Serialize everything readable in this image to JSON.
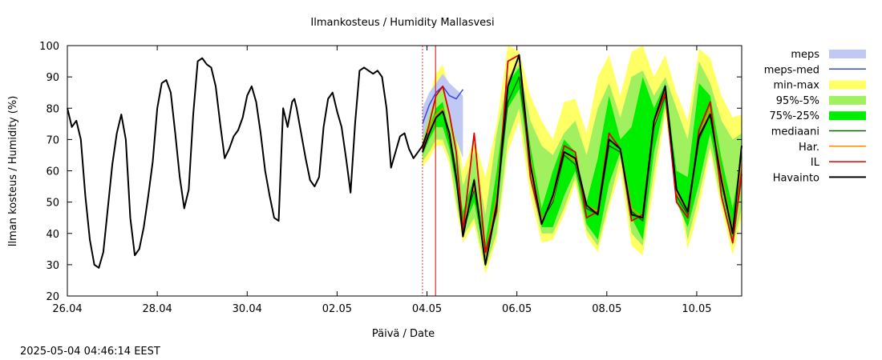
{
  "timestamp": "2025-05-04 04:46:14 EEST",
  "chart_data": {
    "type": "line",
    "title": "Ilmankosteus / Humidity  Mallasvesi",
    "xlabel": "Päivä / Date",
    "ylabel": "Ilman kosteus / Humidity (%)",
    "ylim": [
      20,
      100
    ],
    "yticks": [
      20,
      30,
      40,
      50,
      60,
      70,
      80,
      90,
      100
    ],
    "xlim_days": [
      0,
      15
    ],
    "xticks": [
      {
        "day": 0,
        "label": "26.04"
      },
      {
        "day": 2,
        "label": "28.04"
      },
      {
        "day": 4,
        "label": "30.04"
      },
      {
        "day": 6,
        "label": "02.05"
      },
      {
        "day": 8,
        "label": "04.05"
      },
      {
        "day": 10,
        "label": "06.05"
      },
      {
        "day": 12,
        "label": "08.05"
      },
      {
        "day": 14,
        "label": "10.05"
      }
    ],
    "x_unit": "days since 26.04 00:00",
    "now_marker_day": 8.19,
    "legend_position": "right",
    "legend": [
      {
        "key": "meps",
        "label": "meps",
        "type": "band",
        "color": "#c0c8f4"
      },
      {
        "key": "meps_med",
        "label": "meps-med",
        "type": "line",
        "color": "#3c48d0"
      },
      {
        "key": "minmax",
        "label": "min-max",
        "type": "band",
        "color": "#ffff66"
      },
      {
        "key": "p95",
        "label": "95%-5%",
        "type": "band",
        "color": "#a0f060"
      },
      {
        "key": "p75",
        "label": "75%-25%",
        "type": "band",
        "color": "#00ee00"
      },
      {
        "key": "median",
        "label": "mediaani",
        "type": "line",
        "color": "#006400"
      },
      {
        "key": "har",
        "label": "Har.",
        "type": "line",
        "color": "#ff8c00"
      },
      {
        "key": "il",
        "label": "IL",
        "type": "line",
        "color": "#e00000"
      },
      {
        "key": "obs",
        "label": "Havainto",
        "type": "line",
        "color": "#000000"
      }
    ],
    "observed": {
      "x": [
        0.0,
        0.1,
        0.2,
        0.3,
        0.4,
        0.5,
        0.6,
        0.7,
        0.8,
        0.9,
        1.0,
        1.1,
        1.2,
        1.3,
        1.4,
        1.5,
        1.6,
        1.7,
        1.8,
        1.9,
        2.0,
        2.1,
        2.2,
        2.3,
        2.4,
        2.5,
        2.6,
        2.7,
        2.8,
        2.9,
        3.0,
        3.1,
        3.2,
        3.3,
        3.4,
        3.5,
        3.6,
        3.7,
        3.8,
        3.9,
        4.0,
        4.1,
        4.2,
        4.3,
        4.4,
        4.5,
        4.6,
        4.7,
        4.8,
        4.9,
        5.0,
        5.05,
        5.1,
        5.2,
        5.3,
        5.4,
        5.5,
        5.6,
        5.7,
        5.8,
        5.9,
        6.0,
        6.1,
        6.2,
        6.3,
        6.4,
        6.5,
        6.6,
        6.7,
        6.8,
        6.9,
        7.0,
        7.1,
        7.2,
        7.3,
        7.4,
        7.5,
        7.6,
        7.7,
        7.8,
        7.9,
        8.0
      ],
      "y": [
        80,
        74,
        76,
        70,
        52,
        38,
        30,
        29,
        34,
        48,
        62,
        72,
        78,
        70,
        45,
        33,
        35,
        42,
        52,
        63,
        80,
        88,
        89,
        85,
        72,
        58,
        48,
        54,
        78,
        95,
        96,
        94,
        93,
        87,
        75,
        64,
        67,
        71,
        73,
        77,
        84,
        87,
        82,
        72,
        60,
        52,
        45,
        44,
        80,
        74,
        82,
        83,
        80,
        72,
        64,
        57,
        55,
        58,
        74,
        83,
        85,
        79,
        74,
        64,
        53,
        75,
        92,
        93,
        92,
        91,
        92,
        90,
        80,
        61,
        66,
        71,
        72,
        67,
        64,
        66,
        68,
        72
      ]
    },
    "forecast": {
      "x": [
        7.9,
        8.05,
        8.2,
        8.35,
        8.5,
        8.65,
        8.8,
        9.05,
        9.3,
        9.55,
        9.8,
        10.05,
        10.3,
        10.55,
        10.8,
        11.05,
        11.3,
        11.55,
        11.8,
        12.05,
        12.3,
        12.55,
        12.8,
        13.05,
        13.3,
        13.55,
        13.8,
        14.05,
        14.3,
        14.55,
        14.8,
        15.0
      ],
      "meps_hi": [
        80,
        85,
        88,
        91,
        88,
        86,
        84
      ],
      "meps_lo": [
        66,
        70,
        74,
        75,
        73,
        70,
        64
      ],
      "meps_med": [
        75,
        81,
        85,
        87,
        84,
        83,
        86
      ],
      "minmax_hi": [
        73,
        84,
        91,
        94,
        86,
        75,
        60,
        70,
        58,
        75,
        100,
        98,
        84,
        76,
        70,
        82,
        83,
        72,
        90,
        97,
        84,
        98,
        100,
        90,
        97,
        85,
        76,
        99,
        96,
        84,
        77,
        78
      ],
      "minmax_lo": [
        61,
        64,
        68,
        68,
        62,
        48,
        37,
        43,
        27,
        38,
        66,
        76,
        52,
        37,
        38,
        46,
        56,
        39,
        34,
        48,
        60,
        36,
        33,
        55,
        78,
        55,
        35,
        48,
        66,
        48,
        33,
        45
      ],
      "p95_hi": [
        70,
        78,
        84,
        86,
        78,
        70,
        55,
        66,
        46,
        72,
        90,
        94,
        76,
        68,
        65,
        72,
        76,
        65,
        80,
        88,
        77,
        90,
        92,
        84,
        90,
        80,
        70,
        95,
        88,
        76,
        70,
        72
      ],
      "p95_lo": [
        63,
        66,
        70,
        70,
        64,
        50,
        39,
        45,
        29,
        40,
        70,
        80,
        56,
        40,
        40,
        48,
        58,
        41,
        36,
        50,
        64,
        40,
        36,
        60,
        80,
        58,
        38,
        52,
        68,
        50,
        36,
        48
      ],
      "p75_hi": [
        68,
        74,
        80,
        82,
        72,
        62,
        47,
        58,
        37,
        60,
        88,
        93,
        68,
        48,
        60,
        70,
        66,
        50,
        64,
        84,
        70,
        74,
        90,
        80,
        88,
        60,
        58,
        88,
        84,
        64,
        48,
        66
      ],
      "p75_lo": [
        65,
        70,
        74,
        74,
        67,
        55,
        41,
        50,
        32,
        46,
        80,
        86,
        60,
        42,
        42,
        52,
        60,
        43,
        38,
        56,
        66,
        45,
        38,
        66,
        82,
        50,
        42,
        56,
        72,
        54,
        38,
        56
      ],
      "median": [
        66,
        72,
        77,
        79,
        70,
        57,
        42,
        54,
        33,
        51,
        82,
        90,
        63,
        44,
        50,
        65,
        62,
        48,
        46,
        68,
        66,
        47,
        44,
        74,
        84,
        52,
        46,
        70,
        78,
        58,
        40,
        62
      ],
      "har": [
        67,
        73,
        78,
        80,
        71,
        58,
        43,
        55,
        33,
        52,
        88,
        97,
        64,
        44,
        51,
        66,
        63,
        49,
        47,
        70,
        67,
        48,
        45,
        75,
        85,
        53,
        47,
        71,
        80,
        59,
        41,
        63
      ],
      "il": [
        67,
        75,
        84,
        87,
        78,
        66,
        41,
        72,
        34,
        47,
        95,
        97,
        58,
        43,
        52,
        68,
        66,
        45,
        47,
        72,
        67,
        44,
        46,
        76,
        85,
        50,
        45,
        73,
        82,
        52,
        37,
        59
      ],
      "obs_fc": [
        66,
        72,
        77,
        79,
        72,
        58,
        39,
        57,
        30,
        49,
        87,
        97,
        62,
        43,
        52,
        66,
        64,
        49,
        46,
        70,
        67,
        46,
        45,
        76,
        87,
        54,
        47,
        71,
        78,
        57,
        40,
        68
      ]
    }
  }
}
